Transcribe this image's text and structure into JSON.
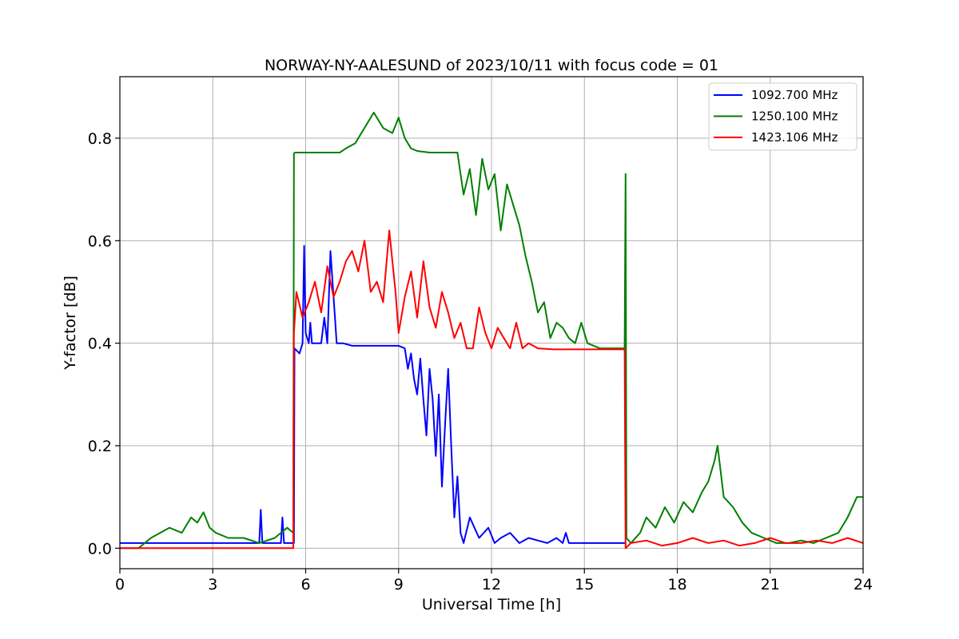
{
  "chart_data": {
    "type": "line",
    "title": "NORWAY-NY-AALESUND of 2023/10/11 with focus code = 01",
    "xlabel": "Universal Time [h]",
    "ylabel": "Y-factor [dB]",
    "xlim": [
      0,
      24
    ],
    "ylim": [
      -0.04,
      0.92
    ],
    "xticks": [
      0,
      3,
      6,
      9,
      12,
      15,
      18,
      21,
      24
    ],
    "yticks": [
      0.0,
      0.2,
      0.4,
      0.6,
      0.8
    ],
    "xtick_labels": [
      "0",
      "3",
      "6",
      "9",
      "12",
      "15",
      "18",
      "21",
      "24"
    ],
    "ytick_labels": [
      "0.0",
      "0.2",
      "0.4",
      "0.6",
      "0.8"
    ],
    "grid": true,
    "legend_position": "top-right",
    "series": [
      {
        "name": "1092.700 MHz",
        "color": "#0000ff",
        "x": [
          0,
          0.5,
          1,
          2,
          3,
          4,
          4.5,
          4.55,
          4.6,
          5,
          5.2,
          5.25,
          5.3,
          5.5,
          5.62,
          5.64,
          5.8,
          5.9,
          5.95,
          6.0,
          6.1,
          6.15,
          6.2,
          6.5,
          6.6,
          6.7,
          6.8,
          7.0,
          7.1,
          7.2,
          7.5,
          8,
          8.5,
          9,
          9.2,
          9.3,
          9.4,
          9.5,
          9.6,
          9.7,
          9.8,
          9.9,
          10.0,
          10.1,
          10.2,
          10.3,
          10.4,
          10.5,
          10.6,
          10.7,
          10.8,
          10.9,
          11.0,
          11.1,
          11.3,
          11.6,
          11.9,
          12.1,
          12.3,
          12.6,
          12.9,
          13.2,
          13.5,
          13.8,
          14.1,
          14.3,
          14.4,
          14.5,
          15,
          16,
          16.3,
          16.35
        ],
        "y": [
          0.01,
          0.01,
          0.01,
          0.01,
          0.01,
          0.01,
          0.01,
          0.075,
          0.01,
          0.01,
          0.01,
          0.06,
          0.01,
          0.01,
          0.01,
          0.39,
          0.38,
          0.4,
          0.59,
          0.42,
          0.4,
          0.44,
          0.4,
          0.4,
          0.45,
          0.4,
          0.58,
          0.4,
          0.4,
          0.4,
          0.395,
          0.395,
          0.395,
          0.395,
          0.39,
          0.35,
          0.38,
          0.33,
          0.3,
          0.37,
          0.29,
          0.22,
          0.35,
          0.29,
          0.18,
          0.3,
          0.12,
          0.24,
          0.35,
          0.2,
          0.06,
          0.14,
          0.03,
          0.01,
          0.06,
          0.02,
          0.04,
          0.01,
          0.02,
          0.03,
          0.01,
          0.02,
          0.015,
          0.01,
          0.02,
          0.01,
          0.03,
          0.01,
          0.01,
          0.01,
          0.01,
          0.01
        ]
      },
      {
        "name": "1250.100 MHz",
        "color": "#008000",
        "x": [
          0,
          0.6,
          1.0,
          1.3,
          1.6,
          2.0,
          2.3,
          2.5,
          2.7,
          2.9,
          3.1,
          3.5,
          4.0,
          4.5,
          5.0,
          5.4,
          5.6,
          5.62,
          5.65,
          7.1,
          7.3,
          7.6,
          7.9,
          8.2,
          8.5,
          8.8,
          9.0,
          9.2,
          9.4,
          9.6,
          10.0,
          10.6,
          10.9,
          11.0,
          11.1,
          11.3,
          11.5,
          11.7,
          11.9,
          12.1,
          12.3,
          12.5,
          12.7,
          12.9,
          13.1,
          13.3,
          13.5,
          13.7,
          13.9,
          14.1,
          14.3,
          14.5,
          14.7,
          14.9,
          15.1,
          15.5,
          16.0,
          16.2,
          16.3,
          16.33,
          16.36,
          16.5,
          16.8,
          17.0,
          17.3,
          17.6,
          17.9,
          18.2,
          18.5,
          18.8,
          19.0,
          19.2,
          19.3,
          19.5,
          19.8,
          20.1,
          20.4,
          20.8,
          21.2,
          21.6,
          22.0,
          22.4,
          22.8,
          23.2,
          23.5,
          23.8,
          24.0
        ],
        "y": [
          0.0,
          0.0,
          0.02,
          0.03,
          0.04,
          0.03,
          0.06,
          0.05,
          0.07,
          0.04,
          0.03,
          0.02,
          0.02,
          0.01,
          0.02,
          0.04,
          0.03,
          0.77,
          0.772,
          0.772,
          0.78,
          0.79,
          0.82,
          0.85,
          0.82,
          0.81,
          0.84,
          0.8,
          0.78,
          0.775,
          0.772,
          0.772,
          0.772,
          0.73,
          0.69,
          0.74,
          0.65,
          0.76,
          0.7,
          0.73,
          0.62,
          0.71,
          0.67,
          0.63,
          0.57,
          0.52,
          0.46,
          0.48,
          0.41,
          0.44,
          0.43,
          0.41,
          0.4,
          0.44,
          0.4,
          0.39,
          0.39,
          0.39,
          0.39,
          0.73,
          0.02,
          0.01,
          0.03,
          0.06,
          0.04,
          0.08,
          0.05,
          0.09,
          0.07,
          0.11,
          0.13,
          0.17,
          0.2,
          0.1,
          0.08,
          0.05,
          0.03,
          0.02,
          0.01,
          0.01,
          0.015,
          0.01,
          0.02,
          0.03,
          0.06,
          0.1,
          0.1
        ]
      },
      {
        "name": "1423.106 MHz",
        "color": "#ff0000",
        "x": [
          0,
          1,
          2,
          3,
          4,
          5,
          5.6,
          5.62,
          5.7,
          5.9,
          6.1,
          6.3,
          6.5,
          6.7,
          6.9,
          7.1,
          7.3,
          7.5,
          7.7,
          7.9,
          8.1,
          8.3,
          8.5,
          8.7,
          8.9,
          9.0,
          9.2,
          9.4,
          9.6,
          9.8,
          10.0,
          10.2,
          10.4,
          10.6,
          10.8,
          11.0,
          11.2,
          11.4,
          11.6,
          11.8,
          12.0,
          12.2,
          12.4,
          12.6,
          12.8,
          13.0,
          13.2,
          13.5,
          14.0,
          14.5,
          15.0,
          15.5,
          16.0,
          16.3,
          16.33,
          16.5,
          17.0,
          17.5,
          18.0,
          18.5,
          19.0,
          19.5,
          20.0,
          20.5,
          21.0,
          21.5,
          22.0,
          22.5,
          23.0,
          23.5,
          24.0
        ],
        "y": [
          0.0,
          0.0,
          0.0,
          0.0,
          0.0,
          0.0,
          0.0,
          0.42,
          0.5,
          0.45,
          0.48,
          0.52,
          0.46,
          0.55,
          0.49,
          0.52,
          0.56,
          0.58,
          0.54,
          0.6,
          0.5,
          0.52,
          0.48,
          0.62,
          0.5,
          0.42,
          0.49,
          0.54,
          0.45,
          0.56,
          0.47,
          0.43,
          0.5,
          0.46,
          0.41,
          0.44,
          0.39,
          0.39,
          0.47,
          0.42,
          0.39,
          0.43,
          0.41,
          0.39,
          0.44,
          0.39,
          0.4,
          0.39,
          0.388,
          0.388,
          0.388,
          0.388,
          0.388,
          0.388,
          0.0,
          0.01,
          0.015,
          0.005,
          0.01,
          0.02,
          0.01,
          0.015,
          0.005,
          0.01,
          0.02,
          0.01,
          0.01,
          0.015,
          0.01,
          0.02,
          0.01
        ]
      }
    ]
  }
}
